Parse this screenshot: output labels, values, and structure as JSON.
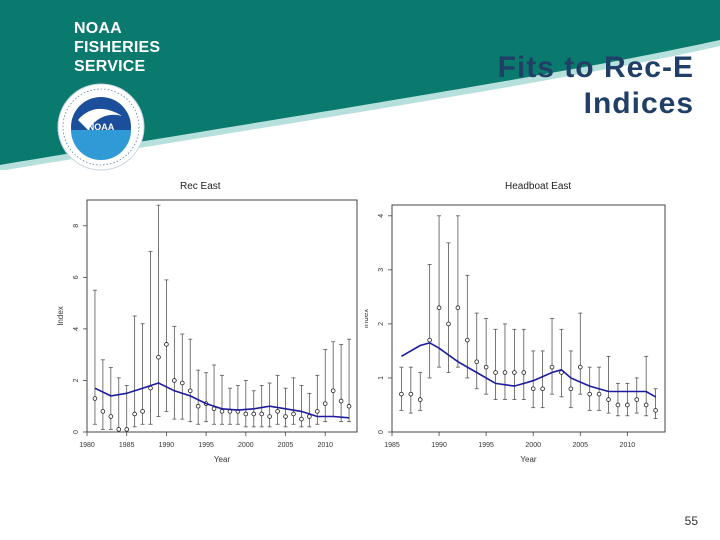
{
  "header": {
    "logo_lines": [
      "NOAA",
      "FISHERIES",
      "SERVICE"
    ],
    "seal_label": "NOAA",
    "title_lines": [
      "Fits to Rec-E",
      "Indices"
    ]
  },
  "page_number": "55",
  "colors": {
    "banner": "#0b7a6e",
    "fit_line": "#1c1c9c",
    "title": "#1f3f66"
  },
  "chart_data": [
    {
      "type": "scatter",
      "title": "Rec East",
      "xlabel": "Year",
      "ylabel": "Index",
      "xlim": [
        1980,
        2014
      ],
      "ylim": [
        0,
        9
      ],
      "xticks": [
        1980,
        1985,
        1990,
        1995,
        2000,
        2005,
        2010
      ],
      "yticks": [
        0,
        2,
        4,
        6,
        8
      ],
      "observed": {
        "x": [
          1981,
          1982,
          1983,
          1984,
          1985,
          1986,
          1987,
          1988,
          1989,
          1990,
          1991,
          1992,
          1993,
          1994,
          1995,
          1996,
          1997,
          1998,
          1999,
          2000,
          2001,
          2002,
          2003,
          2004,
          2005,
          2006,
          2007,
          2008,
          2009,
          2010,
          2011,
          2012,
          2013
        ],
        "y": [
          1.3,
          0.8,
          0.6,
          0.1,
          0.1,
          0.7,
          0.8,
          1.7,
          2.9,
          3.4,
          2.0,
          1.9,
          1.6,
          1.0,
          1.1,
          0.9,
          0.8,
          0.8,
          0.8,
          0.7,
          0.7,
          0.7,
          0.6,
          0.8,
          0.6,
          0.7,
          0.5,
          0.6,
          0.8,
          1.1,
          1.6,
          1.2,
          1.0
        ],
        "lower": [
          0.3,
          0.1,
          0.1,
          0.0,
          0.0,
          0.2,
          0.3,
          0.3,
          0.6,
          0.8,
          0.5,
          0.5,
          0.4,
          0.3,
          0.4,
          0.3,
          0.3,
          0.3,
          0.3,
          0.2,
          0.2,
          0.2,
          0.2,
          0.3,
          0.2,
          0.3,
          0.2,
          0.2,
          0.3,
          0.4,
          0.6,
          0.4,
          0.4
        ],
        "upper": [
          5.5,
          2.8,
          2.5,
          2.1,
          1.8,
          4.5,
          4.2,
          7.0,
          8.8,
          5.9,
          4.1,
          3.8,
          3.6,
          2.4,
          2.3,
          2.6,
          2.2,
          1.7,
          1.8,
          2.0,
          1.6,
          1.8,
          1.9,
          2.2,
          1.7,
          2.1,
          1.8,
          1.5,
          2.2,
          3.2,
          3.5,
          3.4,
          3.6
        ]
      },
      "fit": {
        "x": [
          1981,
          1983,
          1985,
          1987,
          1989,
          1991,
          1993,
          1995,
          1997,
          1999,
          2001,
          2003,
          2005,
          2007,
          2009,
          2011,
          2013
        ],
        "y": [
          1.7,
          1.4,
          1.5,
          1.7,
          1.9,
          1.6,
          1.4,
          1.1,
          0.9,
          0.85,
          0.9,
          1.0,
          0.9,
          0.8,
          0.6,
          0.6,
          0.55
        ]
      }
    },
    {
      "type": "scatter",
      "title": "Headboat East",
      "xlabel": "Year",
      "ylabel": "Index",
      "xlim": [
        1985,
        2014
      ],
      "ylim": [
        0,
        4.2
      ],
      "xticks": [
        1985,
        1990,
        1995,
        2000,
        2005,
        2010
      ],
      "yticks": [
        0,
        1,
        2,
        3,
        4
      ],
      "observed": {
        "x": [
          1986,
          1987,
          1988,
          1989,
          1990,
          1991,
          1992,
          1993,
          1994,
          1995,
          1996,
          1997,
          1998,
          1999,
          2000,
          2001,
          2002,
          2003,
          2004,
          2005,
          2006,
          2007,
          2008,
          2009,
          2010,
          2011,
          2012,
          2013
        ],
        "y": [
          0.7,
          0.7,
          0.6,
          1.7,
          2.3,
          2.0,
          2.3,
          1.7,
          1.3,
          1.2,
          1.1,
          1.1,
          1.1,
          1.1,
          0.8,
          0.8,
          1.2,
          1.1,
          0.8,
          1.2,
          0.7,
          0.7,
          0.6,
          0.5,
          0.5,
          0.6,
          0.5,
          0.4
        ],
        "lower": [
          0.4,
          0.35,
          0.4,
          1.0,
          1.2,
          1.1,
          1.2,
          1.0,
          0.8,
          0.7,
          0.6,
          0.6,
          0.6,
          0.6,
          0.45,
          0.45,
          0.7,
          0.65,
          0.45,
          0.7,
          0.4,
          0.4,
          0.35,
          0.3,
          0.3,
          0.35,
          0.3,
          0.25
        ],
        "upper": [
          1.2,
          1.2,
          1.1,
          3.1,
          4.0,
          3.5,
          4.0,
          2.9,
          2.2,
          2.1,
          1.9,
          2.0,
          1.9,
          1.9,
          1.5,
          1.5,
          2.1,
          1.9,
          1.5,
          2.2,
          1.2,
          1.2,
          1.4,
          0.9,
          0.9,
          1.0,
          1.4,
          0.8
        ]
      },
      "fit": {
        "x": [
          1986,
          1988,
          1989,
          1990,
          1992,
          1994,
          1996,
          1998,
          2000,
          2002,
          2003,
          2004,
          2006,
          2008,
          2010,
          2012,
          2013
        ],
        "y": [
          1.4,
          1.6,
          1.65,
          1.55,
          1.3,
          1.1,
          0.9,
          0.85,
          0.95,
          1.1,
          1.15,
          1.0,
          0.85,
          0.75,
          0.75,
          0.75,
          0.65
        ]
      }
    }
  ]
}
